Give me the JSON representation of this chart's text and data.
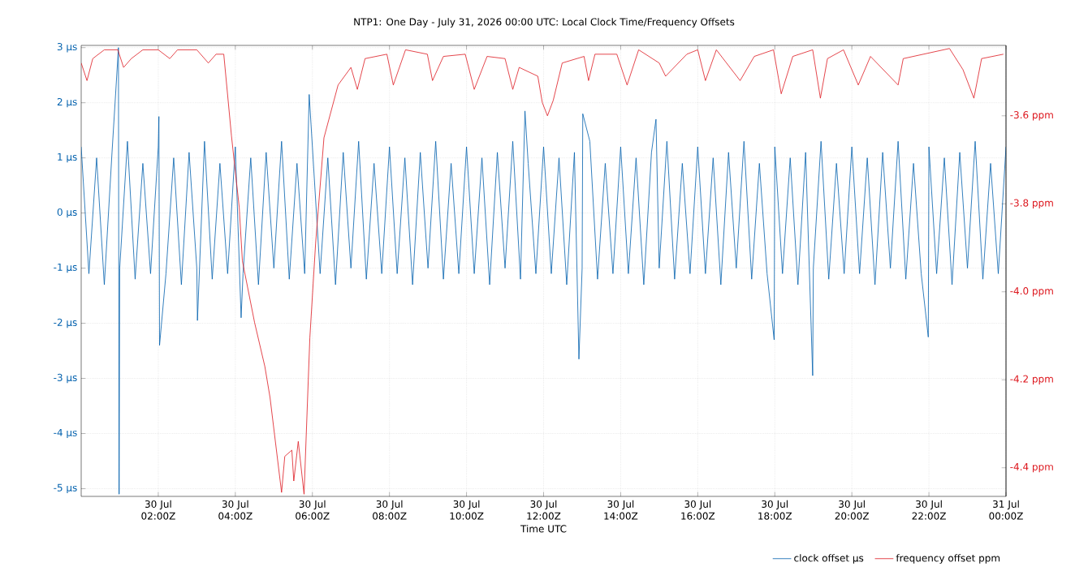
{
  "chart_data": {
    "type": "line",
    "title": "NTP1: One Day - July 31, 2026 00:00 UTC: Local Clock Time/Frequency Offsets",
    "xlabel": "Time UTC",
    "xlim": [
      "2026-07-30T00:00",
      "2026-07-31T00:00"
    ],
    "xticks": [
      {
        "value": "2026-07-30T02:00",
        "label": "30 Jul 02:00Z"
      },
      {
        "value": "2026-07-30T04:00",
        "label": "30 Jul 04:00Z"
      },
      {
        "value": "2026-07-30T06:00",
        "label": "30 Jul 06:00Z"
      },
      {
        "value": "2026-07-30T08:00",
        "label": "30 Jul 08:00Z"
      },
      {
        "value": "2026-07-30T10:00",
        "label": "30 Jul 10:00Z"
      },
      {
        "value": "2026-07-30T12:00",
        "label": "30 Jul 12:00Z"
      },
      {
        "value": "2026-07-30T14:00",
        "label": "30 Jul 14:00Z"
      },
      {
        "value": "2026-07-30T16:00",
        "label": "30 Jul 16:00Z"
      },
      {
        "value": "2026-07-30T18:00",
        "label": "30 Jul 18:00Z"
      },
      {
        "value": "2026-07-30T20:00",
        "label": "30 Jul 20:00Z"
      },
      {
        "value": "2026-07-30T22:00",
        "label": "30 Jul 22:00Z"
      },
      {
        "value": "2026-07-31T00:00",
        "label": "31 Jul 00:00Z"
      }
    ],
    "ylim": [
      -5.14,
      3.04
    ],
    "yticks": [
      {
        "value": -5,
        "label": "-5 μs"
      },
      {
        "value": -4,
        "label": "-4 μs"
      },
      {
        "value": -3,
        "label": "-3 μs"
      },
      {
        "value": -2,
        "label": "-2 μs"
      },
      {
        "value": -1,
        "label": "-1 μs"
      },
      {
        "value": 0,
        "label": "0 μs"
      },
      {
        "value": 1,
        "label": "1 μs"
      },
      {
        "value": 2,
        "label": "2 μs"
      },
      {
        "value": 3,
        "label": "3 μs"
      }
    ],
    "y2lim": [
      -4.465,
      -3.44
    ],
    "y2ticks": [
      {
        "value": -4.4,
        "label": "-4.4 ppm"
      },
      {
        "value": -4.2,
        "label": "-4.2 ppm"
      },
      {
        "value": -4.0,
        "label": "-4.0 ppm"
      },
      {
        "value": -3.8,
        "label": "-3.8 ppm"
      },
      {
        "value": -3.6,
        "label": "-3.6 ppm"
      }
    ],
    "grid": true,
    "legend": "bottom right",
    "series": [
      {
        "name": "clock offset μs",
        "color": "#0060ad",
        "axis": "y",
        "x": [
          "2026-07-30T00:00",
          "2026-07-30T00:12",
          "2026-07-30T00:24",
          "2026-07-30T00:36",
          "2026-07-30T00:48",
          "2026-07-30T00:58",
          "2026-07-30T00:59",
          "2026-07-30T01:00",
          "2026-07-30T01:12",
          "2026-07-30T01:24",
          "2026-07-30T01:36",
          "2026-07-30T01:48",
          "2026-07-30T02:00",
          "2026-07-30T02:01",
          "2026-07-30T02:02",
          "2026-07-30T02:12",
          "2026-07-30T02:24",
          "2026-07-30T02:36",
          "2026-07-30T02:48",
          "2026-07-30T03:00",
          "2026-07-30T03:01",
          "2026-07-30T03:12",
          "2026-07-30T03:24",
          "2026-07-30T03:36",
          "2026-07-30T03:48",
          "2026-07-30T04:00",
          "2026-07-30T04:09",
          "2026-07-30T04:12",
          "2026-07-30T04:24",
          "2026-07-30T04:36",
          "2026-07-30T04:48",
          "2026-07-30T05:00",
          "2026-07-30T05:12",
          "2026-07-30T05:24",
          "2026-07-30T05:36",
          "2026-07-30T05:48",
          "2026-07-30T05:55",
          "2026-07-30T06:00",
          "2026-07-30T06:12",
          "2026-07-30T06:24",
          "2026-07-30T06:36",
          "2026-07-30T06:48",
          "2026-07-30T07:00",
          "2026-07-30T07:12",
          "2026-07-30T07:24",
          "2026-07-30T07:36",
          "2026-07-30T07:48",
          "2026-07-30T08:00",
          "2026-07-30T08:12",
          "2026-07-30T08:24",
          "2026-07-30T08:36",
          "2026-07-30T08:48",
          "2026-07-30T09:00",
          "2026-07-30T09:12",
          "2026-07-30T09:24",
          "2026-07-30T09:36",
          "2026-07-30T09:48",
          "2026-07-30T10:00",
          "2026-07-30T10:12",
          "2026-07-30T10:24",
          "2026-07-30T10:36",
          "2026-07-30T10:48",
          "2026-07-30T11:00",
          "2026-07-30T11:12",
          "2026-07-30T11:24",
          "2026-07-30T11:31",
          "2026-07-30T11:36",
          "2026-07-30T11:48",
          "2026-07-30T12:00",
          "2026-07-30T12:12",
          "2026-07-30T12:24",
          "2026-07-30T12:36",
          "2026-07-30T12:48",
          "2026-07-30T12:55",
          "2026-07-30T13:00",
          "2026-07-30T13:01",
          "2026-07-30T13:12",
          "2026-07-30T13:24",
          "2026-07-30T13:36",
          "2026-07-30T13:48",
          "2026-07-30T14:00",
          "2026-07-30T14:12",
          "2026-07-30T14:24",
          "2026-07-30T14:36",
          "2026-07-30T14:48",
          "2026-07-30T14:55",
          "2026-07-30T15:00",
          "2026-07-30T15:12",
          "2026-07-30T15:24",
          "2026-07-30T15:36",
          "2026-07-30T15:48",
          "2026-07-30T16:00",
          "2026-07-30T16:12",
          "2026-07-30T16:24",
          "2026-07-30T16:36",
          "2026-07-30T16:48",
          "2026-07-30T17:00",
          "2026-07-30T17:12",
          "2026-07-30T17:24",
          "2026-07-30T17:36",
          "2026-07-30T17:48",
          "2026-07-30T17:59",
          "2026-07-30T18:00",
          "2026-07-30T18:12",
          "2026-07-30T18:24",
          "2026-07-30T18:36",
          "2026-07-30T18:48",
          "2026-07-30T18:59",
          "2026-07-30T19:00",
          "2026-07-30T19:12",
          "2026-07-30T19:24",
          "2026-07-30T19:36",
          "2026-07-30T19:48",
          "2026-07-30T20:00",
          "2026-07-30T20:12",
          "2026-07-30T20:24",
          "2026-07-30T20:36",
          "2026-07-30T20:48",
          "2026-07-30T21:00",
          "2026-07-30T21:12",
          "2026-07-30T21:24",
          "2026-07-30T21:36",
          "2026-07-30T21:48",
          "2026-07-30T21:59",
          "2026-07-30T22:00",
          "2026-07-30T22:12",
          "2026-07-30T22:24",
          "2026-07-30T22:36",
          "2026-07-30T22:48",
          "2026-07-30T23:00",
          "2026-07-30T23:12",
          "2026-07-30T23:24",
          "2026-07-30T23:36",
          "2026-07-30T23:48",
          "2026-07-31T00:00"
        ],
        "values": [
          1.2,
          -1.1,
          1.0,
          -1.3,
          1.1,
          3.0,
          -5.1,
          -1.0,
          1.3,
          -1.2,
          0.9,
          -1.1,
          1.2,
          1.75,
          -2.4,
          -1.1,
          1.0,
          -1.3,
          1.1,
          -1.0,
          -1.95,
          1.3,
          -1.2,
          0.9,
          -1.1,
          1.2,
          -1.9,
          -1.1,
          1.0,
          -1.3,
          1.1,
          -1.0,
          1.3,
          -1.2,
          0.9,
          -1.1,
          2.15,
          1.2,
          -1.1,
          1.0,
          -1.3,
          1.1,
          -1.0,
          1.3,
          -1.2,
          0.9,
          -1.1,
          1.2,
          -1.1,
          1.0,
          -1.3,
          1.1,
          -1.0,
          1.3,
          -1.2,
          0.9,
          -1.1,
          1.2,
          -1.1,
          1.0,
          -1.3,
          1.1,
          -1.0,
          1.3,
          -1.2,
          1.85,
          0.9,
          -1.1,
          1.2,
          -1.1,
          1.0,
          -1.3,
          1.1,
          -2.65,
          -1.0,
          1.8,
          1.3,
          -1.2,
          0.9,
          -1.1,
          1.2,
          -1.1,
          1.0,
          -1.3,
          1.1,
          1.7,
          -1.0,
          1.3,
          -1.2,
          0.9,
          -1.1,
          1.2,
          -1.1,
          1.0,
          -1.3,
          1.1,
          -1.0,
          1.3,
          -1.2,
          0.9,
          -1.1,
          -2.3,
          1.2,
          -1.1,
          1.0,
          -1.3,
          1.1,
          -2.95,
          -1.0,
          1.3,
          -1.2,
          0.9,
          -1.1,
          1.2,
          -1.1,
          1.0,
          -1.3,
          1.1,
          -1.0,
          1.3,
          -1.2,
          0.9,
          -1.1,
          -2.25,
          1.2,
          -1.1,
          1.0,
          -1.3,
          1.1,
          -1.0,
          1.3,
          -1.2,
          0.9,
          -1.1,
          1.2
        ]
      },
      {
        "name": "frequency offset ppm",
        "color": "#dd181f",
        "axis": "y2",
        "x": [
          "2026-07-30T00:00",
          "2026-07-30T00:09",
          "2026-07-30T00:18",
          "2026-07-30T00:36",
          "2026-07-30T00:57",
          "2026-07-30T01:06",
          "2026-07-30T01:18",
          "2026-07-30T01:36",
          "2026-07-30T02:00",
          "2026-07-30T02:18",
          "2026-07-30T02:30",
          "2026-07-30T03:00",
          "2026-07-30T03:18",
          "2026-07-30T03:30",
          "2026-07-30T03:42",
          "2026-07-30T03:54",
          "2026-07-30T04:06",
          "2026-07-30T04:11",
          "2026-07-30T04:30",
          "2026-07-30T04:46",
          "2026-07-30T04:54",
          "2026-07-30T05:12",
          "2026-07-30T05:17",
          "2026-07-30T05:28",
          "2026-07-30T05:31",
          "2026-07-30T05:38",
          "2026-07-30T05:47",
          "2026-07-30T05:56",
          "2026-07-30T06:05",
          "2026-07-30T06:18",
          "2026-07-30T06:40",
          "2026-07-30T07:00",
          "2026-07-30T07:10",
          "2026-07-30T07:22",
          "2026-07-30T07:56",
          "2026-07-30T08:06",
          "2026-07-30T08:25",
          "2026-07-30T08:59",
          "2026-07-30T09:07",
          "2026-07-30T09:24",
          "2026-07-30T09:58",
          "2026-07-30T10:12",
          "2026-07-30T10:32",
          "2026-07-30T11:00",
          "2026-07-30T11:12",
          "2026-07-30T11:22",
          "2026-07-30T11:51",
          "2026-07-30T11:58",
          "2026-07-30T12:06",
          "2026-07-30T12:15",
          "2026-07-30T12:29",
          "2026-07-30T13:03",
          "2026-07-30T13:10",
          "2026-07-30T13:20",
          "2026-07-30T13:54",
          "2026-07-30T14:10",
          "2026-07-30T14:28",
          "2026-07-30T15:00",
          "2026-07-30T15:10",
          "2026-07-30T15:43",
          "2026-07-30T16:00",
          "2026-07-30T16:12",
          "2026-07-30T16:29",
          "2026-07-30T17:06",
          "2026-07-30T17:28",
          "2026-07-30T17:58",
          "2026-07-30T18:10",
          "2026-07-30T18:28",
          "2026-07-30T18:59",
          "2026-07-30T19:11",
          "2026-07-30T19:22",
          "2026-07-30T19:47",
          "2026-07-30T20:10",
          "2026-07-30T20:29",
          "2026-07-30T21:12",
          "2026-07-30T21:20",
          "2026-07-30T22:32",
          "2026-07-30T22:53",
          "2026-07-30T23:10",
          "2026-07-30T23:22",
          "2026-07-30T23:56"
        ],
        "values": [
          -3.48,
          -3.52,
          -3.47,
          -3.45,
          -3.45,
          -3.49,
          -3.47,
          -3.45,
          -3.45,
          -3.47,
          -3.45,
          -3.45,
          -3.48,
          -3.46,
          -3.46,
          -3.646,
          -3.807,
          -3.93,
          -4.07,
          -4.17,
          -4.24,
          -4.456,
          -4.374,
          -4.36,
          -4.43,
          -4.34,
          -4.46,
          -4.105,
          -3.89,
          -3.65,
          -3.53,
          -3.49,
          -3.54,
          -3.47,
          -3.46,
          -3.53,
          -3.45,
          -3.46,
          -3.52,
          -3.465,
          -3.46,
          -3.54,
          -3.465,
          -3.47,
          -3.54,
          -3.49,
          -3.51,
          -3.57,
          -3.6,
          -3.565,
          -3.48,
          -3.465,
          -3.52,
          -3.46,
          -3.46,
          -3.53,
          -3.45,
          -3.48,
          -3.51,
          -3.46,
          -3.45,
          -3.52,
          -3.45,
          -3.52,
          -3.465,
          -3.45,
          -3.55,
          -3.465,
          -3.45,
          -3.56,
          -3.47,
          -3.45,
          -3.53,
          -3.465,
          -3.53,
          -3.47,
          -3.447,
          -3.495,
          -3.56,
          -3.47,
          -3.46
        ]
      }
    ]
  }
}
